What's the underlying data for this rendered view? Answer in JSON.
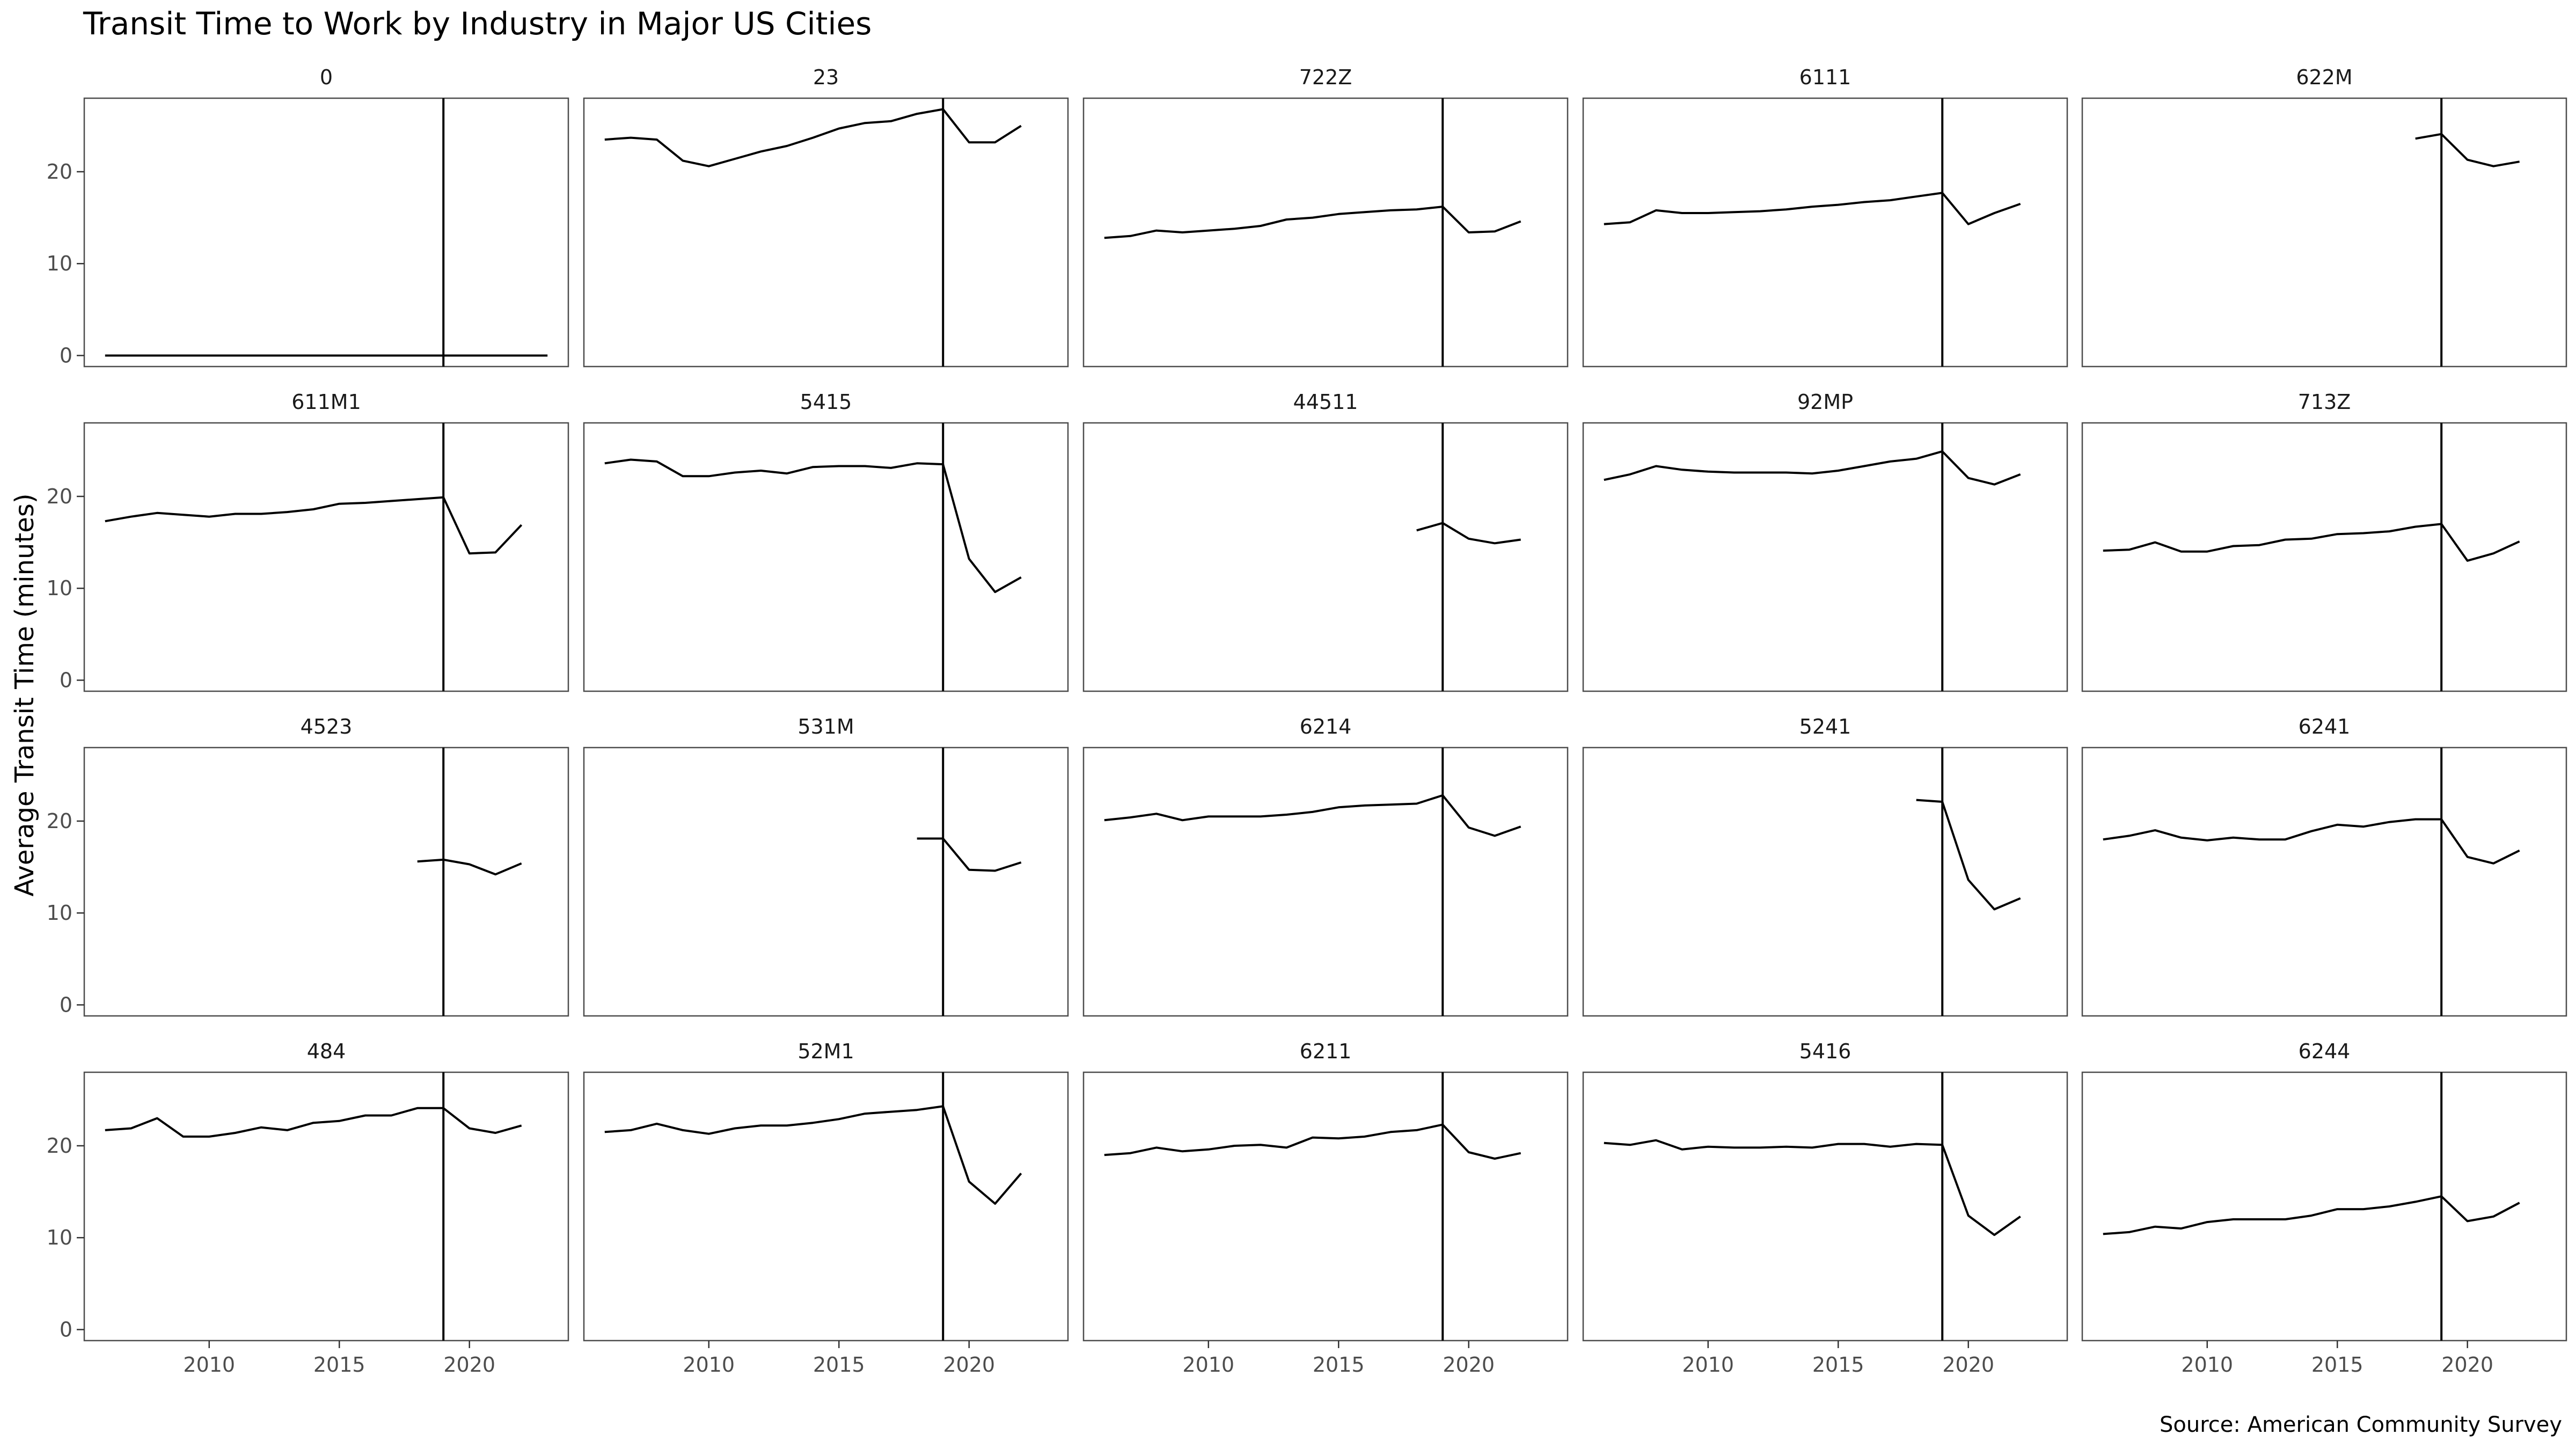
{
  "chart_data": {
    "type": "line",
    "title": "Transit Time to Work by Industry in Major US Cities",
    "ylabel": "Average Transit Time (minutes)",
    "xlabel": "",
    "caption": "Source: American Community Survey",
    "x_ticks": [
      2010,
      2015,
      2020
    ],
    "y_ticks": [
      0,
      10,
      20
    ],
    "xlim": [
      2005.2,
      2023.8
    ],
    "ylim": [
      -1.2,
      28
    ],
    "reference_line_x": 2019,
    "grid": false,
    "facets": [
      {
        "name": "0",
        "x": [
          2006,
          2007,
          2008,
          2009,
          2010,
          2011,
          2012,
          2013,
          2014,
          2015,
          2016,
          2017,
          2018,
          2019,
          2020,
          2021,
          2022,
          2023
        ],
        "y": [
          0,
          0,
          0,
          0,
          0,
          0,
          0,
          0,
          0,
          0,
          0,
          0,
          0,
          0,
          0,
          0,
          0,
          0
        ]
      },
      {
        "name": "23",
        "x": [
          2006,
          2007,
          2008,
          2009,
          2010,
          2011,
          2012,
          2013,
          2014,
          2015,
          2016,
          2017,
          2018,
          2019,
          2020,
          2021,
          2022
        ],
        "y": [
          23.5,
          23.7,
          23.5,
          21.2,
          20.6,
          21.4,
          22.2,
          22.8,
          23.7,
          24.7,
          25.3,
          25.5,
          26.3,
          26.8,
          23.2,
          23.2,
          25.0
        ]
      },
      {
        "name": "722Z",
        "x": [
          2006,
          2007,
          2008,
          2009,
          2010,
          2011,
          2012,
          2013,
          2014,
          2015,
          2016,
          2017,
          2018,
          2019,
          2020,
          2021,
          2022
        ],
        "y": [
          12.8,
          13.0,
          13.6,
          13.4,
          13.6,
          13.8,
          14.1,
          14.8,
          15.0,
          15.4,
          15.6,
          15.8,
          15.9,
          16.2,
          13.4,
          13.5,
          14.6
        ]
      },
      {
        "name": "6111",
        "x": [
          2006,
          2007,
          2008,
          2009,
          2010,
          2011,
          2012,
          2013,
          2014,
          2015,
          2016,
          2017,
          2018,
          2019,
          2020,
          2021,
          2022
        ],
        "y": [
          14.3,
          14.5,
          15.8,
          15.5,
          15.5,
          15.6,
          15.7,
          15.9,
          16.2,
          16.4,
          16.7,
          16.9,
          17.3,
          17.7,
          14.3,
          15.5,
          16.5
        ]
      },
      {
        "name": "622M",
        "x": [
          2018,
          2019,
          2020,
          2021,
          2022
        ],
        "y": [
          23.6,
          24.1,
          21.3,
          20.6,
          21.1
        ]
      },
      {
        "name": "611M1",
        "x": [
          2006,
          2007,
          2008,
          2009,
          2010,
          2011,
          2012,
          2013,
          2014,
          2015,
          2016,
          2017,
          2018,
          2019,
          2020,
          2021,
          2022
        ],
        "y": [
          17.3,
          17.8,
          18.2,
          18.0,
          17.8,
          18.1,
          18.1,
          18.3,
          18.6,
          19.2,
          19.3,
          19.5,
          19.7,
          19.9,
          13.8,
          13.9,
          16.9
        ]
      },
      {
        "name": "5415",
        "x": [
          2006,
          2007,
          2008,
          2009,
          2010,
          2011,
          2012,
          2013,
          2014,
          2015,
          2016,
          2017,
          2018,
          2019,
          2020,
          2021,
          2022
        ],
        "y": [
          23.6,
          24.0,
          23.8,
          22.2,
          22.2,
          22.6,
          22.8,
          22.5,
          23.2,
          23.3,
          23.3,
          23.1,
          23.6,
          23.5,
          13.2,
          9.6,
          11.2
        ]
      },
      {
        "name": "44511",
        "x": [
          2018,
          2019,
          2020,
          2021,
          2022
        ],
        "y": [
          16.3,
          17.1,
          15.4,
          14.9,
          15.3
        ]
      },
      {
        "name": "92MP",
        "x": [
          2006,
          2007,
          2008,
          2009,
          2010,
          2011,
          2012,
          2013,
          2014,
          2015,
          2016,
          2017,
          2018,
          2019,
          2020,
          2021,
          2022
        ],
        "y": [
          21.8,
          22.4,
          23.3,
          22.9,
          22.7,
          22.6,
          22.6,
          22.6,
          22.5,
          22.8,
          23.3,
          23.8,
          24.1,
          24.9,
          22.0,
          21.3,
          22.4
        ]
      },
      {
        "name": "713Z",
        "x": [
          2006,
          2007,
          2008,
          2009,
          2010,
          2011,
          2012,
          2013,
          2014,
          2015,
          2016,
          2017,
          2018,
          2019,
          2020,
          2021,
          2022
        ],
        "y": [
          14.1,
          14.2,
          15.0,
          14.0,
          14.0,
          14.6,
          14.7,
          15.3,
          15.4,
          15.9,
          16.0,
          16.2,
          16.7,
          17.0,
          13.0,
          13.8,
          15.1
        ]
      },
      {
        "name": "4523",
        "x": [
          2018,
          2019,
          2020,
          2021,
          2022
        ],
        "y": [
          15.6,
          15.8,
          15.3,
          14.2,
          15.4
        ]
      },
      {
        "name": "531M",
        "x": [
          2018,
          2019,
          2020,
          2021,
          2022
        ],
        "y": [
          18.1,
          18.1,
          14.7,
          14.6,
          15.5
        ]
      },
      {
        "name": "6214",
        "x": [
          2006,
          2007,
          2008,
          2009,
          2010,
          2011,
          2012,
          2013,
          2014,
          2015,
          2016,
          2017,
          2018,
          2019,
          2020,
          2021,
          2022
        ],
        "y": [
          20.1,
          20.4,
          20.8,
          20.1,
          20.5,
          20.5,
          20.5,
          20.7,
          21.0,
          21.5,
          21.7,
          21.8,
          21.9,
          22.8,
          19.3,
          18.4,
          19.4
        ]
      },
      {
        "name": "5241",
        "x": [
          2018,
          2019,
          2020,
          2021,
          2022
        ],
        "y": [
          22.3,
          22.1,
          13.6,
          10.4,
          11.6
        ]
      },
      {
        "name": "6241",
        "x": [
          2006,
          2007,
          2008,
          2009,
          2010,
          2011,
          2012,
          2013,
          2014,
          2015,
          2016,
          2017,
          2018,
          2019,
          2020,
          2021,
          2022
        ],
        "y": [
          18.0,
          18.4,
          19.0,
          18.2,
          17.9,
          18.2,
          18.0,
          18.0,
          18.9,
          19.6,
          19.4,
          19.9,
          20.2,
          20.2,
          16.1,
          15.4,
          16.8
        ]
      },
      {
        "name": "484",
        "x": [
          2006,
          2007,
          2008,
          2009,
          2010,
          2011,
          2012,
          2013,
          2014,
          2015,
          2016,
          2017,
          2018,
          2019,
          2020,
          2021,
          2022
        ],
        "y": [
          21.7,
          21.9,
          23.0,
          21.0,
          21.0,
          21.4,
          22.0,
          21.7,
          22.5,
          22.7,
          23.3,
          23.3,
          24.1,
          24.1,
          21.9,
          21.4,
          22.2
        ]
      },
      {
        "name": "52M1",
        "x": [
          2006,
          2007,
          2008,
          2009,
          2010,
          2011,
          2012,
          2013,
          2014,
          2015,
          2016,
          2017,
          2018,
          2019,
          2020,
          2021,
          2022
        ],
        "y": [
          21.5,
          21.7,
          22.4,
          21.7,
          21.3,
          21.9,
          22.2,
          22.2,
          22.5,
          22.9,
          23.5,
          23.7,
          23.9,
          24.3,
          16.1,
          13.7,
          17.0
        ]
      },
      {
        "name": "6211",
        "x": [
          2006,
          2007,
          2008,
          2009,
          2010,
          2011,
          2012,
          2013,
          2014,
          2015,
          2016,
          2017,
          2018,
          2019,
          2020,
          2021,
          2022
        ],
        "y": [
          19.0,
          19.2,
          19.8,
          19.4,
          19.6,
          20.0,
          20.1,
          19.8,
          20.9,
          20.8,
          21.0,
          21.5,
          21.7,
          22.3,
          19.3,
          18.6,
          19.2
        ]
      },
      {
        "name": "5416",
        "x": [
          2006,
          2007,
          2008,
          2009,
          2010,
          2011,
          2012,
          2013,
          2014,
          2015,
          2016,
          2017,
          2018,
          2019,
          2020,
          2021,
          2022
        ],
        "y": [
          20.3,
          20.1,
          20.6,
          19.6,
          19.9,
          19.8,
          19.8,
          19.9,
          19.8,
          20.2,
          20.2,
          19.9,
          20.2,
          20.1,
          12.4,
          10.3,
          12.3
        ]
      },
      {
        "name": "6244",
        "x": [
          2006,
          2007,
          2008,
          2009,
          2010,
          2011,
          2012,
          2013,
          2014,
          2015,
          2016,
          2017,
          2018,
          2019,
          2020,
          2021,
          2022
        ],
        "y": [
          10.4,
          10.6,
          11.2,
          11.0,
          11.7,
          12.0,
          12.0,
          12.0,
          12.4,
          13.1,
          13.1,
          13.4,
          13.9,
          14.5,
          11.8,
          12.3,
          13.8
        ]
      }
    ]
  }
}
